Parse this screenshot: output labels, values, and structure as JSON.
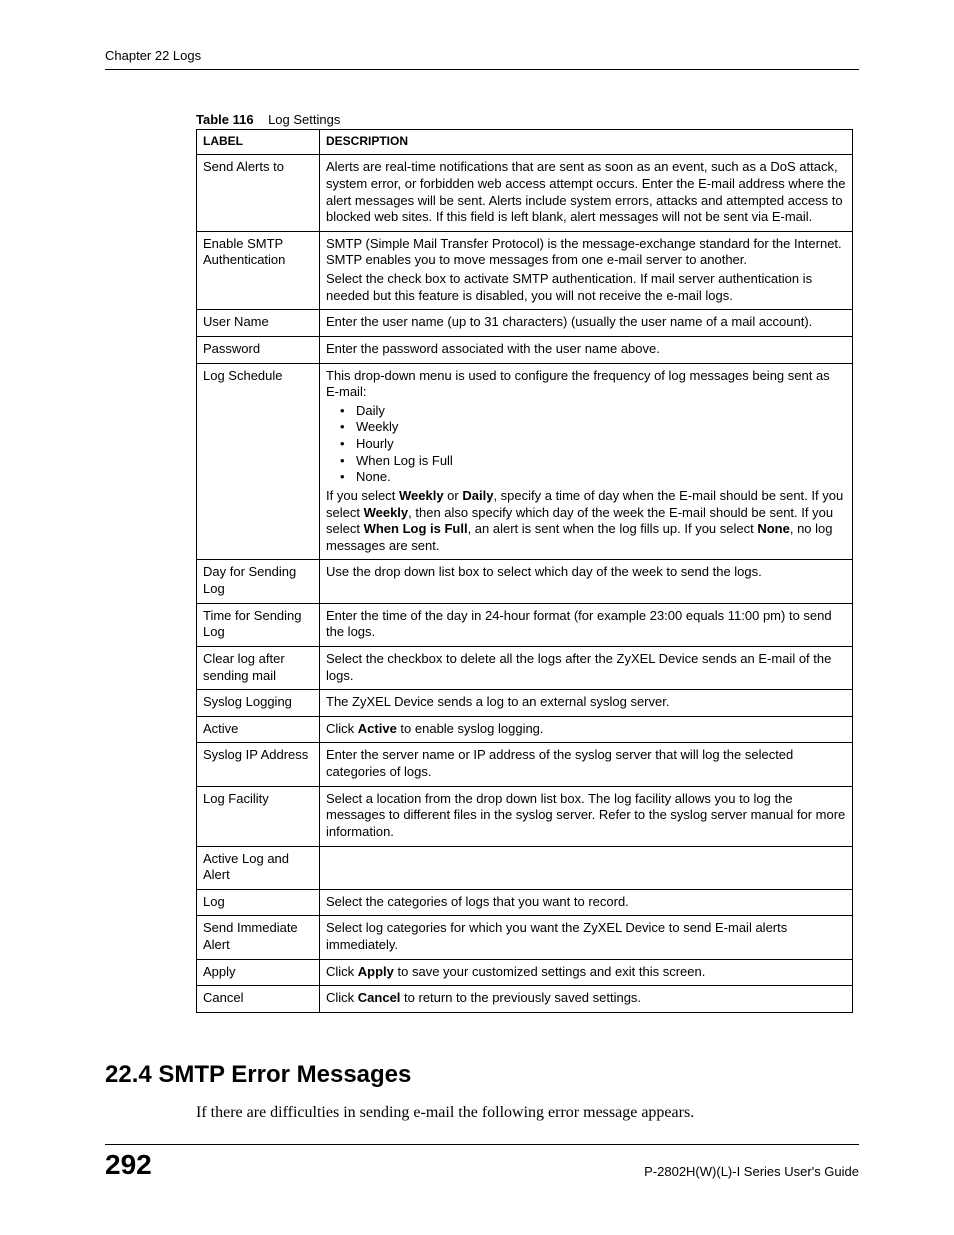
{
  "running_header": "Chapter 22 Logs",
  "table_caption_prefix": "Table 116",
  "table_caption_title": "Log Settings",
  "columns": {
    "label": "LABEL",
    "description": "DESCRIPTION"
  },
  "rows": {
    "send_alerts_to": {
      "label": "Send Alerts to",
      "desc": "Alerts are real-time notifications that are sent as soon as an event, such as a DoS attack, system error, or forbidden web access attempt occurs. Enter the E-mail address where the alert messages will be sent. Alerts include system errors, attacks and attempted access to blocked web sites. If this field is left blank, alert messages will not be sent via E-mail."
    },
    "enable_smtp_auth": {
      "label": "Enable SMTP Authentication",
      "desc_p1": "SMTP (Simple Mail Transfer Protocol) is the message-exchange standard for the Internet. SMTP enables you to move messages from one e-mail server to another.",
      "desc_p2": "Select the check box to activate SMTP authentication. If mail server authentication is needed but this feature is disabled, you will not receive the e-mail logs."
    },
    "user_name": {
      "label": "User Name",
      "desc": "Enter the user name (up to 31 characters) (usually the user name of a mail account)."
    },
    "password": {
      "label": "Password",
      "desc": "Enter the password associated with the user name above."
    },
    "log_schedule": {
      "label": "Log Schedule",
      "intro": "This drop-down menu is used to configure the frequency of log messages being sent as E-mail:",
      "options": [
        "Daily",
        "Weekly",
        "Hourly",
        "When Log is Full",
        "None."
      ],
      "outro_1a": "If you select ",
      "outro_1b": "Weekly",
      "outro_1c": " or ",
      "outro_1d": "Daily",
      "outro_1e": ", specify a time of day when the E-mail should be sent. If you select ",
      "outro_1f": "Weekly",
      "outro_1g": ", then also specify which day of the week the E-mail should be sent. If you select ",
      "outro_1h": "When Log is Full",
      "outro_1i": ", an alert is sent when the log fills up. If you select ",
      "outro_1j": "None",
      "outro_1k": ", no log messages are sent."
    },
    "day_for_sending": {
      "label": "Day for Sending Log",
      "desc": "Use the drop down list box to select which day of the week to send the logs."
    },
    "time_for_sending": {
      "label": "Time for Sending Log",
      "desc": "Enter the time of the day in 24-hour format (for example 23:00 equals 11:00 pm) to send the logs."
    },
    "clear_log": {
      "label": "Clear log after sending mail",
      "desc": "Select the checkbox to delete all the logs after the ZyXEL Device sends an E-mail of the logs."
    },
    "syslog_logging": {
      "label": "Syslog Logging",
      "desc": "The ZyXEL Device sends a log to an external syslog server."
    },
    "active": {
      "label": "Active",
      "desc_a": "Click ",
      "desc_b": "Active",
      "desc_c": " to enable syslog logging."
    },
    "syslog_ip": {
      "label": "Syslog IP Address",
      "desc": "Enter the server name or IP address of the syslog server that will log the selected categories of logs."
    },
    "log_facility": {
      "label": "Log Facility",
      "desc": "Select a location from the drop down list box. The log facility allows you to log the messages to different files in the syslog server. Refer to the syslog server manual for more information."
    },
    "active_log_alert": {
      "label": "Active Log and Alert",
      "desc": ""
    },
    "log": {
      "label": "Log",
      "desc": "Select the categories of logs that you want to record."
    },
    "send_immediate": {
      "label": "Send Immediate Alert",
      "desc": "Select log categories for which you want the ZyXEL Device to send E-mail alerts immediately."
    },
    "apply": {
      "label": "Apply",
      "desc_a": "Click ",
      "desc_b": "Apply",
      "desc_c": " to save your customized settings and exit this screen."
    },
    "cancel": {
      "label": "Cancel",
      "desc_a": "Click ",
      "desc_b": "Cancel",
      "desc_c": " to return to the previously saved settings."
    }
  },
  "section_heading": "22.4  SMTP Error Messages",
  "section_body": "If there are difficulties in sending e-mail the following error message appears.",
  "footer": {
    "page": "292",
    "guide": "P-2802H(W)(L)-I Series User's Guide"
  }
}
